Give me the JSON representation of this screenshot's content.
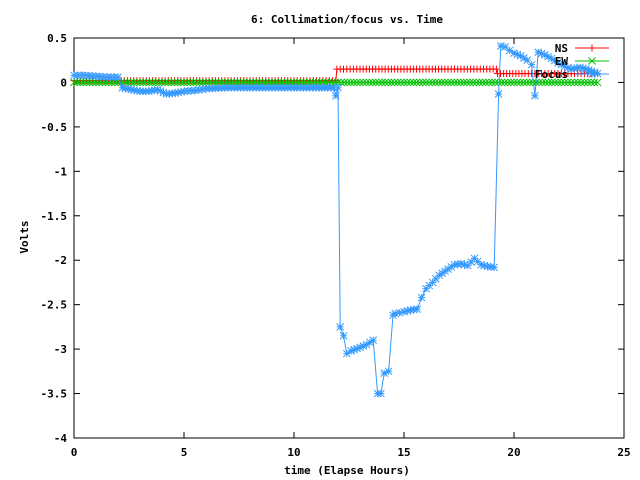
{
  "chart_data": {
    "type": "line",
    "title": "6: Collimation/focus vs. Time",
    "xlabel": "time (Elapse Hours)",
    "ylabel": "Volts",
    "xlim": [
      0,
      25
    ],
    "ylim": [
      -4,
      0.5
    ],
    "x_ticks": [
      0,
      5,
      10,
      15,
      20,
      25
    ],
    "x_tick_labels": [
      "0",
      "5",
      "10",
      "15",
      "20",
      "25"
    ],
    "y_ticks": [
      0.5,
      0,
      -0.5,
      -1,
      -1.5,
      -2,
      -2.5,
      -3,
      -3.5,
      -4
    ],
    "y_tick_labels": [
      "0.5",
      "0",
      "-0.5",
      "-1",
      "-1.5",
      "-2",
      "-2.5",
      "-3",
      "-3.5",
      "-4"
    ],
    "grid": false,
    "legend_position": "top-right",
    "series": [
      {
        "name": "NS",
        "color": "#ff0000",
        "marker": "plus",
        "x": [
          0.0,
          2.0,
          4.0,
          6.0,
          8.0,
          10.0,
          11.9,
          11.95,
          13.0,
          15.0,
          17.0,
          19.2,
          19.25,
          20.5,
          22.0,
          23.8
        ],
        "values": [
          0.02,
          0.02,
          0.02,
          0.02,
          0.02,
          0.02,
          0.02,
          0.15,
          0.15,
          0.15,
          0.15,
          0.15,
          0.1,
          0.1,
          0.1,
          0.1
        ]
      },
      {
        "name": "EW",
        "color": "#00c000",
        "marker": "cross",
        "x": [
          0.0,
          2.0,
          4.0,
          6.0,
          8.0,
          10.0,
          12.0,
          14.0,
          16.0,
          18.0,
          20.0,
          22.0,
          23.8
        ],
        "values": [
          0.0,
          0.0,
          0.0,
          0.0,
          0.0,
          0.0,
          0.0,
          0.0,
          0.0,
          0.0,
          0.0,
          0.0,
          0.0
        ]
      },
      {
        "name": "Focus",
        "color": "#3399ff",
        "marker": "star",
        "x": [
          0.0,
          0.5,
          1.0,
          1.5,
          2.0,
          2.2,
          2.6,
          3.0,
          3.4,
          3.8,
          4.2,
          4.6,
          5.0,
          5.5,
          6.0,
          7.0,
          8.0,
          9.0,
          10.0,
          11.0,
          11.8,
          11.9,
          12.0,
          12.1,
          12.25,
          12.4,
          12.6,
          13.0,
          13.3,
          13.6,
          13.8,
          13.95,
          14.1,
          14.3,
          14.5,
          14.6,
          14.8,
          15.0,
          15.3,
          15.6,
          15.8,
          16.0,
          16.3,
          16.6,
          17.0,
          17.3,
          17.6,
          17.9,
          18.2,
          18.5,
          18.8,
          19.1,
          19.3,
          19.4,
          19.6,
          19.8,
          20.0,
          20.3,
          20.6,
          20.8,
          20.95,
          21.1,
          21.4,
          21.7,
          22.0,
          22.3,
          22.6,
          23.0,
          23.4,
          23.8
        ],
        "values": [
          0.08,
          0.08,
          0.07,
          0.06,
          0.06,
          -0.06,
          -0.08,
          -0.1,
          -0.1,
          -0.08,
          -0.13,
          -0.12,
          -0.1,
          -0.09,
          -0.07,
          -0.06,
          -0.06,
          -0.06,
          -0.06,
          -0.06,
          -0.06,
          -0.15,
          -0.06,
          -2.75,
          -2.85,
          -3.05,
          -3.02,
          -2.98,
          -2.95,
          -2.9,
          -3.5,
          -3.5,
          -3.27,
          -3.25,
          -2.62,
          -2.6,
          -2.59,
          -2.58,
          -2.56,
          -2.55,
          -2.42,
          -2.32,
          -2.25,
          -2.17,
          -2.1,
          -2.05,
          -2.04,
          -2.06,
          -1.98,
          -2.05,
          -2.07,
          -2.08,
          -0.13,
          0.41,
          0.4,
          0.36,
          0.33,
          0.3,
          0.25,
          0.2,
          -0.15,
          0.34,
          0.31,
          0.27,
          0.22,
          0.18,
          0.15,
          0.17,
          0.14,
          0.1
        ]
      }
    ]
  }
}
